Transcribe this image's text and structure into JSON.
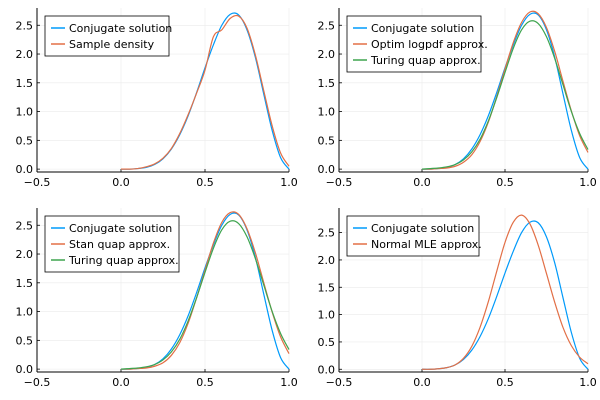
{
  "colors": {
    "series_1": "#009AFA",
    "series_2": "#E26F46",
    "series_3": "#3EA44E",
    "grid": "#EBEBEB",
    "axis": "#000000"
  },
  "chart_data": [
    {
      "type": "line",
      "grid": true,
      "legend_position": "top-left",
      "xlim": [
        -0.5,
        1.0
      ],
      "ylim": [
        -0.05,
        2.8
      ],
      "xticks": [
        -0.5,
        0.0,
        0.5,
        1.0
      ],
      "xtick_labels": [
        "−0.5",
        "0.0",
        "0.5",
        "1.0"
      ],
      "yticks": [
        0.0,
        0.5,
        1.0,
        1.5,
        2.0,
        2.5
      ],
      "ytick_labels": [
        "0.0",
        "0.5",
        "1.0",
        "1.5",
        "2.0",
        "2.5"
      ],
      "x": [
        0.0,
        0.05,
        0.1,
        0.15,
        0.2,
        0.25,
        0.3,
        0.35,
        0.4,
        0.45,
        0.5,
        0.55,
        0.6,
        0.65,
        0.7,
        0.75,
        0.8,
        0.85,
        0.9,
        0.95,
        1.0
      ],
      "series": [
        {
          "name": "Conjugate solution",
          "values": [
            0.0,
            0.0,
            0.01,
            0.03,
            0.08,
            0.18,
            0.35,
            0.6,
            0.93,
            1.33,
            1.76,
            2.16,
            2.5,
            2.69,
            2.68,
            2.42,
            1.94,
            1.3,
            0.67,
            0.2,
            0.0
          ]
        },
        {
          "name": "Sample density",
          "values": [
            0.0,
            0.0,
            0.01,
            0.04,
            0.09,
            0.19,
            0.36,
            0.62,
            0.95,
            1.32,
            1.72,
            2.3,
            2.42,
            2.62,
            2.66,
            2.45,
            1.98,
            1.36,
            0.75,
            0.28,
            0.05
          ]
        }
      ]
    },
    {
      "type": "line",
      "grid": true,
      "legend_position": "top-left",
      "xlim": [
        -0.5,
        1.0
      ],
      "ylim": [
        -0.05,
        2.8
      ],
      "xticks": [
        -0.5,
        0.0,
        0.5,
        1.0
      ],
      "xtick_labels": [
        "−0.5",
        "0.0",
        "0.5",
        "1.0"
      ],
      "yticks": [
        0.0,
        0.5,
        1.0,
        1.5,
        2.0,
        2.5
      ],
      "ytick_labels": [
        "0.0",
        "0.5",
        "1.0",
        "1.5",
        "2.0",
        "2.5"
      ],
      "x": [
        0.0,
        0.05,
        0.1,
        0.15,
        0.2,
        0.25,
        0.3,
        0.35,
        0.4,
        0.45,
        0.5,
        0.55,
        0.6,
        0.65,
        0.7,
        0.75,
        0.8,
        0.85,
        0.9,
        0.95,
        1.0
      ],
      "series": [
        {
          "name": "Conjugate solution",
          "values": [
            0.0,
            0.0,
            0.01,
            0.03,
            0.08,
            0.18,
            0.35,
            0.6,
            0.93,
            1.33,
            1.76,
            2.16,
            2.5,
            2.69,
            2.68,
            2.42,
            1.94,
            1.3,
            0.67,
            0.2,
            0.0
          ]
        },
        {
          "name": "Optim logpdf approx.",
          "values": [
            0.0,
            0.0,
            0.01,
            0.02,
            0.05,
            0.12,
            0.25,
            0.48,
            0.82,
            1.26,
            1.74,
            2.2,
            2.55,
            2.73,
            2.7,
            2.46,
            2.04,
            1.52,
            1.01,
            0.58,
            0.29
          ]
        },
        {
          "name": "Turing quap approx.",
          "values": [
            0.0,
            0.01,
            0.02,
            0.04,
            0.08,
            0.16,
            0.3,
            0.52,
            0.84,
            1.24,
            1.68,
            2.1,
            2.42,
            2.57,
            2.53,
            2.3,
            1.92,
            1.46,
            1.0,
            0.62,
            0.34
          ]
        }
      ]
    },
    {
      "type": "line",
      "grid": true,
      "legend_position": "top-left",
      "xlim": [
        -0.5,
        1.0
      ],
      "ylim": [
        -0.05,
        2.8
      ],
      "xticks": [
        -0.5,
        0.0,
        0.5,
        1.0
      ],
      "xtick_labels": [
        "−0.5",
        "0.0",
        "0.5",
        "1.0"
      ],
      "yticks": [
        0.0,
        0.5,
        1.0,
        1.5,
        2.0,
        2.5
      ],
      "ytick_labels": [
        "0.0",
        "0.5",
        "1.0",
        "1.5",
        "2.0",
        "2.5"
      ],
      "x": [
        0.0,
        0.05,
        0.1,
        0.15,
        0.2,
        0.25,
        0.3,
        0.35,
        0.4,
        0.45,
        0.5,
        0.55,
        0.6,
        0.65,
        0.7,
        0.75,
        0.8,
        0.85,
        0.9,
        0.95,
        1.0
      ],
      "series": [
        {
          "name": "Conjugate solution",
          "values": [
            0.0,
            0.0,
            0.01,
            0.03,
            0.08,
            0.18,
            0.35,
            0.6,
            0.93,
            1.33,
            1.76,
            2.16,
            2.5,
            2.69,
            2.68,
            2.42,
            1.94,
            1.3,
            0.67,
            0.2,
            0.0
          ]
        },
        {
          "name": "Stan quap approx.",
          "values": [
            0.0,
            0.0,
            0.01,
            0.02,
            0.05,
            0.11,
            0.24,
            0.46,
            0.8,
            1.24,
            1.72,
            2.19,
            2.55,
            2.72,
            2.69,
            2.44,
            2.02,
            1.5,
            0.99,
            0.56,
            0.27
          ]
        },
        {
          "name": "Turing quap approx.",
          "values": [
            0.0,
            0.01,
            0.02,
            0.04,
            0.08,
            0.16,
            0.3,
            0.52,
            0.84,
            1.24,
            1.68,
            2.1,
            2.42,
            2.57,
            2.53,
            2.3,
            1.92,
            1.46,
            1.0,
            0.62,
            0.34
          ]
        }
      ]
    },
    {
      "type": "line",
      "grid": true,
      "legend_position": "top-left",
      "xlim": [
        -0.5,
        1.0
      ],
      "ylim": [
        -0.05,
        2.95
      ],
      "xticks": [
        -0.5,
        0.0,
        0.5,
        1.0
      ],
      "xtick_labels": [
        "−0.5",
        "0.0",
        "0.5",
        "1.0"
      ],
      "yticks": [
        0.0,
        0.5,
        1.0,
        1.5,
        2.0,
        2.5
      ],
      "ytick_labels": [
        "0.0",
        "0.5",
        "1.0",
        "1.5",
        "2.0",
        "2.5"
      ],
      "x": [
        0.0,
        0.05,
        0.1,
        0.15,
        0.2,
        0.25,
        0.3,
        0.35,
        0.4,
        0.45,
        0.5,
        0.55,
        0.6,
        0.65,
        0.7,
        0.75,
        0.8,
        0.85,
        0.9,
        0.95,
        1.0
      ],
      "series": [
        {
          "name": "Conjugate solution",
          "values": [
            0.0,
            0.0,
            0.01,
            0.03,
            0.08,
            0.18,
            0.35,
            0.6,
            0.93,
            1.33,
            1.76,
            2.16,
            2.5,
            2.69,
            2.68,
            2.42,
            1.94,
            1.3,
            0.67,
            0.2,
            0.0
          ]
        },
        {
          "name": "Normal MLE approx.",
          "values": [
            0.0,
            0.0,
            0.01,
            0.03,
            0.08,
            0.2,
            0.42,
            0.77,
            1.24,
            1.79,
            2.32,
            2.69,
            2.82,
            2.66,
            2.27,
            1.75,
            1.22,
            0.76,
            0.43,
            0.22,
            0.1
          ]
        }
      ]
    }
  ]
}
